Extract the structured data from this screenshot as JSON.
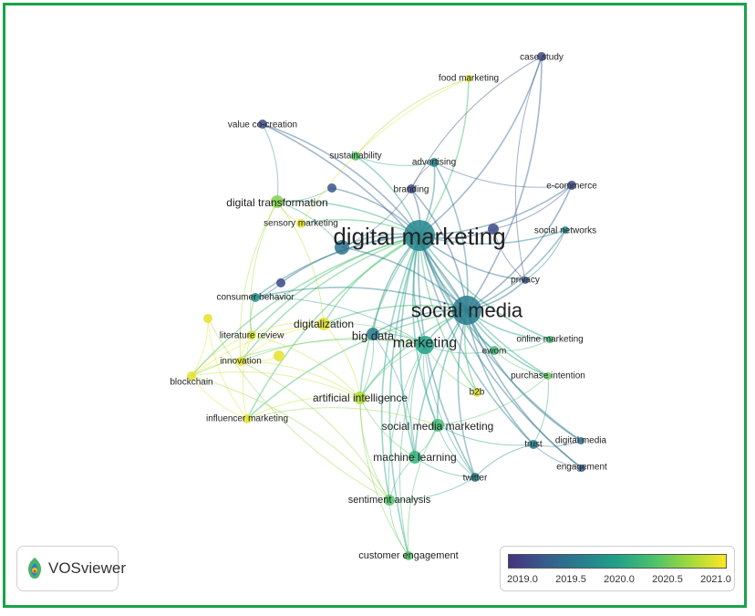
{
  "network": {
    "nodes": [
      {
        "id": "digital marketing",
        "label": "digital marketing",
        "year": 2019.7,
        "size": "xl"
      },
      {
        "id": "social media",
        "label": "social media",
        "year": 2019.6,
        "size": "xl"
      },
      {
        "id": "marketing",
        "label": "marketing",
        "year": 2020.0,
        "size": "l"
      },
      {
        "id": "big data",
        "label": "big data",
        "year": 2019.6,
        "size": "m"
      },
      {
        "id": "digitalization",
        "label": "digitalization",
        "year": 2021.0,
        "size": "m"
      },
      {
        "id": "artificial intelligence",
        "label": "artificial intelligence",
        "year": 2020.8,
        "size": "m"
      },
      {
        "id": "social media marketing",
        "label": "social media marketing",
        "year": 2020.3,
        "size": "m"
      },
      {
        "id": "machine learning",
        "label": "machine learning",
        "year": 2020.2,
        "size": "m"
      },
      {
        "id": "sentiment analysis",
        "label": "sentiment analysis",
        "year": 2020.4,
        "size": "s"
      },
      {
        "id": "customer engagement",
        "label": "customer engagement",
        "year": 2020.4,
        "size": "s"
      },
      {
        "id": "digital transformation",
        "label": "digital transformation",
        "year": 2020.6,
        "size": "m"
      },
      {
        "id": "sensory marketing",
        "label": "sensory marketing",
        "year": 2021.0,
        "size": "s"
      },
      {
        "id": "sustainability",
        "label": "sustainability",
        "year": 2020.4,
        "size": "s"
      },
      {
        "id": "advertising",
        "label": "advertising",
        "year": 2019.7,
        "size": "s"
      },
      {
        "id": "branding",
        "label": "branding",
        "year": 2019.1,
        "size": "s"
      },
      {
        "id": "food marketing",
        "label": "food marketing",
        "year": 2021.0,
        "size": "s"
      },
      {
        "id": "case study",
        "label": "case study",
        "year": 2019.1,
        "size": "s"
      },
      {
        "id": "value co-creation",
        "label": "value co-creation",
        "year": 2019.1,
        "size": "s"
      },
      {
        "id": "e-commerce",
        "label": "e-commerce",
        "year": 2019.1,
        "size": "s"
      },
      {
        "id": "social networks",
        "label": "social networks",
        "year": 2019.7,
        "size": "s"
      },
      {
        "id": "privacy",
        "label": "privacy",
        "year": 2019.2,
        "size": "s"
      },
      {
        "id": "consumer behavior",
        "label": "consumer behavior",
        "year": 2019.8,
        "size": "s"
      },
      {
        "id": "literature review",
        "label": "literature review",
        "year": 2020.9,
        "size": "s"
      },
      {
        "id": "innovation",
        "label": "innovation",
        "year": 2021.0,
        "size": "s"
      },
      {
        "id": "blockchain",
        "label": "blockchain",
        "year": 2021.0,
        "size": "s"
      },
      {
        "id": "influencer marketing",
        "label": "influencer marketing",
        "year": 2021.0,
        "size": "s"
      },
      {
        "id": "ewom",
        "label": "ewom",
        "year": 2020.3,
        "size": "s"
      },
      {
        "id": "online marketing",
        "label": "online marketing",
        "year": 2020.3,
        "size": "s"
      },
      {
        "id": "purchase intention",
        "label": "purchase intention",
        "year": 2020.5,
        "size": "s"
      },
      {
        "id": "b2b",
        "label": "b2b",
        "year": 2021.0,
        "size": "s"
      },
      {
        "id": "trust",
        "label": "trust",
        "year": 2019.6,
        "size": "s"
      },
      {
        "id": "digital media",
        "label": "digital media",
        "year": 2019.5,
        "size": "s"
      },
      {
        "id": "engagement",
        "label": "engagement",
        "year": 2019.3,
        "size": "s"
      },
      {
        "id": "twitter",
        "label": "twitter",
        "year": 2019.6,
        "size": "s"
      },
      {
        "id": "n_unlabeled_1",
        "label": "",
        "year": 2019.5,
        "size": "m"
      },
      {
        "id": "n_unlabeled_2",
        "label": "",
        "year": 2019.2,
        "size": "s"
      },
      {
        "id": "n_unlabeled_3",
        "label": "",
        "year": 2019.1,
        "size": "s"
      },
      {
        "id": "n_unlabeled_4",
        "label": "",
        "year": 2019.1,
        "size": "s"
      },
      {
        "id": "n_unlabeled_5",
        "label": "",
        "year": 2021.0,
        "size": "s"
      },
      {
        "id": "n_unlabeled_6",
        "label": "",
        "year": 2021.0,
        "size": "s"
      }
    ],
    "edges": [
      [
        "digital marketing",
        "social media"
      ],
      [
        "digital marketing",
        "marketing"
      ],
      [
        "digital marketing",
        "big data"
      ],
      [
        "digital marketing",
        "digitalization"
      ],
      [
        "digital marketing",
        "artificial intelligence"
      ],
      [
        "digital marketing",
        "social media marketing"
      ],
      [
        "digital marketing",
        "machine learning"
      ],
      [
        "digital marketing",
        "sentiment analysis"
      ],
      [
        "digital marketing",
        "digital transformation"
      ],
      [
        "digital marketing",
        "sensory marketing"
      ],
      [
        "digital marketing",
        "sustainability"
      ],
      [
        "digital marketing",
        "advertising"
      ],
      [
        "digital marketing",
        "branding"
      ],
      [
        "digital marketing",
        "food marketing"
      ],
      [
        "digital marketing",
        "case study"
      ],
      [
        "digital marketing",
        "value co-creation"
      ],
      [
        "digital marketing",
        "e-commerce"
      ],
      [
        "digital marketing",
        "social networks"
      ],
      [
        "digital marketing",
        "privacy"
      ],
      [
        "digital marketing",
        "consumer behavior"
      ],
      [
        "digital marketing",
        "literature review"
      ],
      [
        "digital marketing",
        "innovation"
      ],
      [
        "digital marketing",
        "blockchain"
      ],
      [
        "digital marketing",
        "influencer marketing"
      ],
      [
        "digital marketing",
        "ewom"
      ],
      [
        "digital marketing",
        "online marketing"
      ],
      [
        "digital marketing",
        "purchase intention"
      ],
      [
        "digital marketing",
        "b2b"
      ],
      [
        "digital marketing",
        "trust"
      ],
      [
        "digital marketing",
        "digital media"
      ],
      [
        "digital marketing",
        "engagement"
      ],
      [
        "digital marketing",
        "twitter"
      ],
      [
        "digital marketing",
        "customer engagement"
      ],
      [
        "digital marketing",
        "n_unlabeled_1"
      ],
      [
        "digital marketing",
        "n_unlabeled_2"
      ],
      [
        "digital marketing",
        "n_unlabeled_3"
      ],
      [
        "digital marketing",
        "n_unlabeled_4"
      ],
      [
        "social media",
        "marketing"
      ],
      [
        "social media",
        "big data"
      ],
      [
        "social media",
        "advertising"
      ],
      [
        "social media",
        "case study"
      ],
      [
        "social media",
        "e-commerce"
      ],
      [
        "social media",
        "social networks"
      ],
      [
        "social media",
        "privacy"
      ],
      [
        "social media",
        "ewom"
      ],
      [
        "social media",
        "online marketing"
      ],
      [
        "social media",
        "purchase intention"
      ],
      [
        "social media",
        "trust"
      ],
      [
        "social media",
        "digital media"
      ],
      [
        "social media",
        "engagement"
      ],
      [
        "social media",
        "twitter"
      ],
      [
        "social media",
        "social media marketing"
      ],
      [
        "social media",
        "machine learning"
      ],
      [
        "social media",
        "consumer behavior"
      ],
      [
        "social media",
        "value co-creation"
      ],
      [
        "social media",
        "branding"
      ],
      [
        "social media",
        "n_unlabeled_1"
      ],
      [
        "social media",
        "digitalization"
      ],
      [
        "social media",
        "artificial intelligence"
      ],
      [
        "social media",
        "influencer marketing"
      ],
      [
        "social media",
        "b2b"
      ],
      [
        "marketing",
        "artificial intelligence"
      ],
      [
        "marketing",
        "big data"
      ],
      [
        "marketing",
        "machine learning"
      ],
      [
        "marketing",
        "social media marketing"
      ],
      [
        "marketing",
        "sentiment analysis"
      ],
      [
        "marketing",
        "consumer behavior"
      ],
      [
        "marketing",
        "innovation"
      ],
      [
        "marketing",
        "blockchain"
      ],
      [
        "marketing",
        "digitalization"
      ],
      [
        "marketing",
        "b2b"
      ],
      [
        "marketing",
        "ewom"
      ],
      [
        "marketing",
        "twitter"
      ],
      [
        "marketing",
        "customer engagement"
      ],
      [
        "artificial intelligence",
        "machine learning"
      ],
      [
        "artificial intelligence",
        "big data"
      ],
      [
        "artificial intelligence",
        "blockchain"
      ],
      [
        "artificial intelligence",
        "innovation"
      ],
      [
        "artificial intelligence",
        "sentiment analysis"
      ],
      [
        "artificial intelligence",
        "influencer marketing"
      ],
      [
        "artificial intelligence",
        "literature review"
      ],
      [
        "artificial intelligence",
        "digitalization"
      ],
      [
        "artificial intelligence",
        "customer engagement"
      ],
      [
        "machine learning",
        "sentiment analysis"
      ],
      [
        "machine learning",
        "twitter"
      ],
      [
        "machine learning",
        "big data"
      ],
      [
        "machine learning",
        "social media marketing"
      ],
      [
        "sentiment analysis",
        "customer engagement"
      ],
      [
        "sentiment analysis",
        "twitter"
      ],
      [
        "sentiment analysis",
        "blockchain"
      ],
      [
        "sentiment analysis",
        "innovation"
      ],
      [
        "social media marketing",
        "influencer marketing"
      ],
      [
        "social media marketing",
        "twitter"
      ],
      [
        "social media marketing",
        "purchase intention"
      ],
      [
        "social media marketing",
        "customer engagement"
      ],
      [
        "social media marketing",
        "trust"
      ],
      [
        "digitalization",
        "innovation"
      ],
      [
        "digitalization",
        "literature review"
      ],
      [
        "digitalization",
        "blockchain"
      ],
      [
        "digitalization",
        "digital transformation"
      ],
      [
        "digital transformation",
        "innovation"
      ],
      [
        "digital transformation",
        "sensory marketing"
      ],
      [
        "digital transformation",
        "value co-creation"
      ],
      [
        "digital transformation",
        "literature review"
      ],
      [
        "digital transformation",
        "n_unlabeled_2"
      ],
      [
        "literature review",
        "blockchain"
      ],
      [
        "literature review",
        "influencer marketing"
      ],
      [
        "literature review",
        "innovation"
      ],
      [
        "innovation",
        "blockchain"
      ],
      [
        "innovation",
        "n_unlabeled_5"
      ],
      [
        "blockchain",
        "influencer marketing"
      ],
      [
        "blockchain",
        "n_unlabeled_6"
      ],
      [
        "n_unlabeled_6",
        "influencer marketing"
      ],
      [
        "n_unlabeled_6",
        "sentiment analysis"
      ],
      [
        "consumer behavior",
        "n_unlabeled_4"
      ],
      [
        "consumer behavior",
        "literature review"
      ],
      [
        "food marketing",
        "sensory marketing"
      ],
      [
        "food marketing",
        "sustainability"
      ],
      [
        "case study",
        "branding"
      ],
      [
        "case study",
        "privacy"
      ],
      [
        "trust",
        "purchase intention"
      ],
      [
        "trust",
        "digital media"
      ],
      [
        "trust",
        "engagement"
      ],
      [
        "trust",
        "twitter"
      ],
      [
        "ewom",
        "purchase intention"
      ],
      [
        "ewom",
        "online marketing"
      ],
      [
        "privacy",
        "social networks"
      ],
      [
        "advertising",
        "branding"
      ],
      [
        "advertising",
        "e-commerce"
      ],
      [
        "sustainability",
        "advertising"
      ],
      [
        "n_unlabeled_1",
        "branding"
      ],
      [
        "n_unlabeled_1",
        "digital transformation"
      ],
      [
        "n_unlabeled_3",
        "e-commerce"
      ],
      [
        "n_unlabeled_3",
        "privacy"
      ]
    ]
  },
  "legend": {
    "ticks": [
      "2019.0",
      "2019.5",
      "2020.0",
      "2020.5",
      "2021.0"
    ],
    "min_year": 2018.9,
    "max_year": 2021.1
  },
  "logo": {
    "text": "VOSviewer"
  },
  "colors": {
    "frame": "#1aa24a",
    "edge_opacity": 0.45,
    "viridis": [
      "#46327e",
      "#365c8d",
      "#277f8e",
      "#1fa187",
      "#4ac16d",
      "#a0da39",
      "#fde725"
    ]
  }
}
